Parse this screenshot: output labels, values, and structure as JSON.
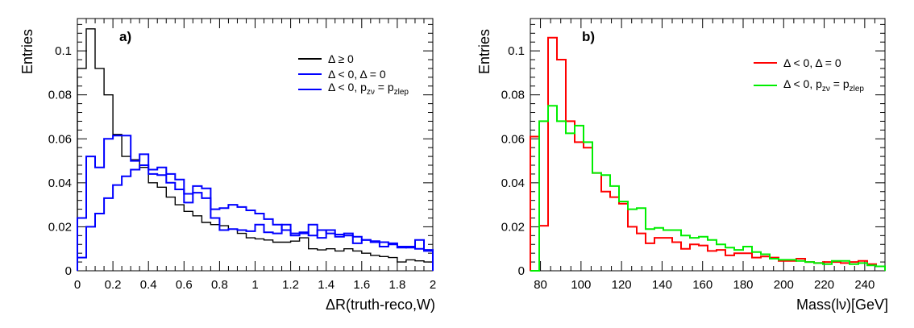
{
  "chart_data": [
    {
      "type": "histogram-step",
      "panel_label": "a)",
      "xlabel": "ΔR(truth-reco,W)",
      "ylabel": "Entries",
      "xlim": [
        0,
        2
      ],
      "ylim": [
        0,
        0.1147
      ],
      "grid": false,
      "legend_position": "top-right",
      "x_tick_values": [
        0,
        0.2,
        0.4,
        0.6,
        0.8,
        1,
        1.2,
        1.4,
        1.6,
        1.8,
        2
      ],
      "x_tick_labels": [
        "0",
        "0.2",
        "0.4",
        "0.6",
        "0.8",
        "1",
        "1.2",
        "1.4",
        "1.6",
        "1.8",
        "2"
      ],
      "x_minor_step": 0.05,
      "y_tick_values": [
        0,
        0.02,
        0.04,
        0.06,
        0.08,
        0.1
      ],
      "y_tick_labels": [
        "0",
        "0.02",
        "0.04",
        "0.06",
        "0.08",
        "0.1"
      ],
      "y_minor_step": 0.004,
      "bin_start": 0,
      "bin_width": 0.05,
      "n_bins": 40,
      "series": [
        {
          "name": "Δ ≥ 0",
          "name_segments": [
            {
              "t": "Δ ≥ 0"
            }
          ],
          "color": "#000000",
          "line_width": 1.4,
          "values": [
            0.092,
            0.11,
            0.092,
            0.08,
            0.062,
            0.052,
            0.0505,
            0.047,
            0.04,
            0.038,
            0.0335,
            0.03,
            0.027,
            0.025,
            0.022,
            0.021,
            0.0205,
            0.019,
            0.017,
            0.015,
            0.0145,
            0.014,
            0.013,
            0.013,
            0.0135,
            0.015,
            0.01,
            0.0095,
            0.01,
            0.009,
            0.01,
            0.009,
            0.008,
            0.007,
            0.0065,
            0.006,
            0.004,
            0.005,
            0.0045,
            0.004
          ]
        },
        {
          "name": "Δ < 0, Δ = 0",
          "name_segments": [
            {
              "t": "Δ < 0, Δ = 0"
            }
          ],
          "color": "#0000ff",
          "line_width": 2,
          "values": [
            0.024,
            0.052,
            0.047,
            0.06,
            0.0615,
            0.0615,
            0.05,
            0.053,
            0.046,
            0.047,
            0.044,
            0.0415,
            0.031,
            0.0385,
            0.0375,
            0.024,
            0.0185,
            0.019,
            0.0185,
            0.018,
            0.021,
            0.0175,
            0.017,
            0.021,
            0.016,
            0.017,
            0.021,
            0.015,
            0.0185,
            0.0165,
            0.016,
            0.0125,
            0.014,
            0.013,
            0.011,
            0.012,
            0.0105,
            0.011,
            0.014,
            0.009
          ]
        },
        {
          "name": "Δ < 0, p_zν = p_zlep",
          "name_segments": [
            {
              "t": "Δ < 0, p"
            },
            {
              "t": "zν",
              "sub": true
            },
            {
              "t": " = p"
            },
            {
              "t": "zlep",
              "sub": true
            }
          ],
          "color": "#0000ff",
          "line_width": 2,
          "values": [
            0.006,
            0.02,
            0.026,
            0.033,
            0.039,
            0.043,
            0.046,
            0.048,
            0.044,
            0.0435,
            0.04,
            0.037,
            0.035,
            0.0355,
            0.033,
            0.028,
            0.0285,
            0.03,
            0.029,
            0.0275,
            0.026,
            0.0235,
            0.021,
            0.0185,
            0.017,
            0.0175,
            0.016,
            0.0185,
            0.017,
            0.0155,
            0.017,
            0.0155,
            0.014,
            0.0135,
            0.013,
            0.0125,
            0.011,
            0.0105,
            0.01,
            0.0095
          ]
        }
      ]
    },
    {
      "type": "histogram-step",
      "panel_label": "b)",
      "xlabel": "Mass(lν)[GeV]",
      "ylabel": "Entries",
      "xlim": [
        75,
        250
      ],
      "ylim": [
        0,
        0.1147
      ],
      "grid": false,
      "legend_position": "top-right",
      "x_tick_values": [
        80,
        100,
        120,
        140,
        160,
        180,
        200,
        220,
        240
      ],
      "x_tick_labels": [
        "80",
        "100",
        "120",
        "140",
        "160",
        "180",
        "200",
        "220",
        "240"
      ],
      "x_minor_step": 5,
      "y_tick_values": [
        0,
        0.02,
        0.04,
        0.06,
        0.08,
        0.1
      ],
      "y_tick_labels": [
        "0",
        "0.02",
        "0.04",
        "0.06",
        "0.08",
        "0.1"
      ],
      "y_minor_step": 0.004,
      "bin_start": 75,
      "bin_width": 4.375,
      "n_bins": 40,
      "series": [
        {
          "name": "Δ < 0, Δ = 0",
          "name_segments": [
            {
              "t": "Δ < 0, Δ = 0"
            }
          ],
          "color": "#ff0000",
          "line_width": 2,
          "values": [
            0.061,
            0.0205,
            0.106,
            0.096,
            0.068,
            0.0585,
            0.056,
            0.0445,
            0.036,
            0.0335,
            0.0305,
            0.02,
            0.017,
            0.0125,
            0.015,
            0.015,
            0.013,
            0.01,
            0.012,
            0.0115,
            0.009,
            0.0095,
            0.007,
            0.008,
            0.008,
            0.006,
            0.0065,
            0.006,
            0.0045,
            0.0045,
            0.0055,
            0.004,
            0.0035,
            0.004,
            0.004,
            0.0035,
            0.004,
            0.0045,
            0.003,
            0.002
          ]
        },
        {
          "name": "Δ < 0, p_zν = p_zlep",
          "name_segments": [
            {
              "t": "Δ < 0, p"
            },
            {
              "t": "zν",
              "sub": true
            },
            {
              "t": " = p"
            },
            {
              "t": "zlep",
              "sub": true
            }
          ],
          "color": "#00ee00",
          "line_width": 2,
          "values": [
            0.0,
            0.068,
            0.075,
            0.068,
            0.0625,
            0.066,
            0.0585,
            0.0445,
            0.0435,
            0.0385,
            0.0315,
            0.028,
            0.0285,
            0.019,
            0.0195,
            0.0185,
            0.0185,
            0.016,
            0.015,
            0.0155,
            0.014,
            0.012,
            0.0105,
            0.0095,
            0.011,
            0.0085,
            0.0075,
            0.0055,
            0.005,
            0.005,
            0.0045,
            0.004,
            0.0035,
            0.003,
            0.0045,
            0.0045,
            0.003,
            0.0035,
            0.0025,
            0.002
          ]
        }
      ]
    }
  ]
}
